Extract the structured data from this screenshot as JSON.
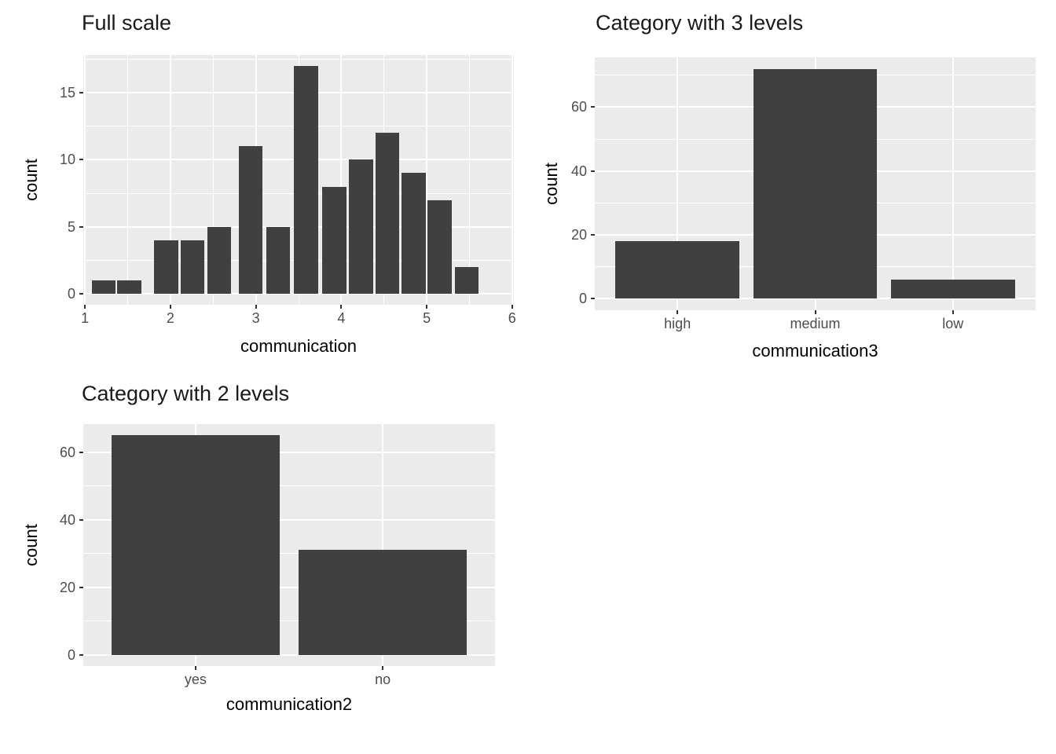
{
  "style": {
    "bar_color": "#404040",
    "panel_bg": "#EBEBEB",
    "grid_color": "#FFFFFF",
    "tick_text_color": "#4D4D4D",
    "axis_title_color": "#000000",
    "plot_title_color": "#1A1A1A",
    "background": "#FFFFFF"
  },
  "chart_data": [
    {
      "type": "histogram",
      "title": "Full scale",
      "xlabel": "communication",
      "ylabel": "count",
      "xlim": [
        0.98,
        6.02
      ],
      "ylim": [
        -0.85,
        17.85
      ],
      "x_ticks": [
        1,
        2,
        3,
        4,
        5,
        6
      ],
      "x_minor": [
        1.5,
        2.5,
        3.5,
        4.5,
        5.5
      ],
      "y_ticks": [
        0,
        5,
        10,
        15
      ],
      "y_minor": [
        2.5,
        7.5,
        12.5,
        17.5
      ],
      "bin_width": 0.3,
      "bins": [
        {
          "x": 1.22,
          "count": 1
        },
        {
          "x": 1.52,
          "count": 1
        },
        {
          "x": 1.95,
          "count": 4
        },
        {
          "x": 2.26,
          "count": 4
        },
        {
          "x": 2.57,
          "count": 5
        },
        {
          "x": 2.94,
          "count": 11
        },
        {
          "x": 3.26,
          "count": 5
        },
        {
          "x": 3.59,
          "count": 17
        },
        {
          "x": 3.92,
          "count": 8
        },
        {
          "x": 4.23,
          "count": 10
        },
        {
          "x": 4.54,
          "count": 12
        },
        {
          "x": 4.85,
          "count": 9
        },
        {
          "x": 5.15,
          "count": 7
        },
        {
          "x": 5.47,
          "count": 2
        }
      ]
    },
    {
      "type": "bar",
      "title": "Category with 3 levels",
      "xlabel": "communication3",
      "ylabel": "count",
      "categories": [
        "high",
        "medium",
        "low"
      ],
      "values": [
        18,
        72,
        6
      ],
      "ylim": [
        -3.6,
        75.6
      ],
      "y_ticks": [
        0,
        20,
        40,
        60
      ],
      "y_minor": [
        10,
        30,
        50,
        70
      ]
    },
    {
      "type": "bar",
      "title": "Category with 2 levels",
      "xlabel": "communication2",
      "ylabel": "count",
      "categories": [
        "yes",
        "no"
      ],
      "values": [
        65,
        31
      ],
      "ylim": [
        -3.25,
        68.25
      ],
      "y_ticks": [
        0,
        20,
        40,
        60
      ],
      "y_minor": [
        10,
        30,
        50,
        70
      ]
    }
  ]
}
